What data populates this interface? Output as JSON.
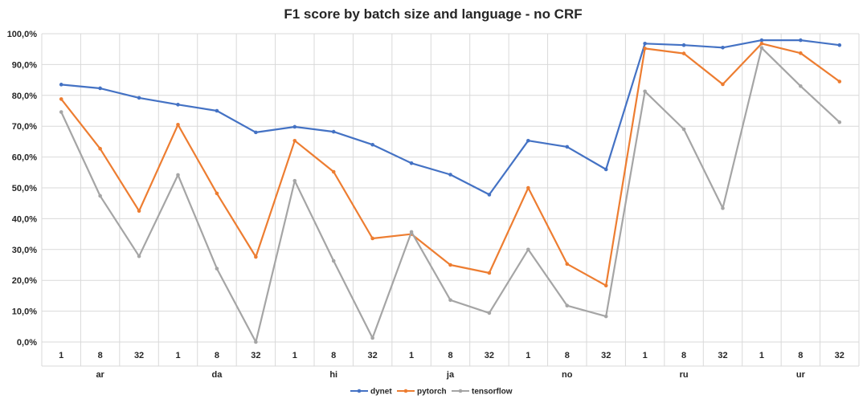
{
  "chart_data": {
    "type": "line",
    "title": "F1 score by batch size and language - no CRF",
    "xlabel": "",
    "ylabel": "",
    "ylim": [
      0,
      100
    ],
    "yticks": [
      "0,0%",
      "10,0%",
      "20,0%",
      "30,0%",
      "40,0%",
      "50,0%",
      "60,0%",
      "70,0%",
      "80,0%",
      "90,0%",
      "100,0%"
    ],
    "grid": true,
    "legend_position": "bottom",
    "groups": [
      "ar",
      "da",
      "hi",
      "ja",
      "no",
      "ru",
      "ur"
    ],
    "categories": [
      "1",
      "8",
      "32",
      "1",
      "8",
      "32",
      "1",
      "8",
      "32",
      "1",
      "8",
      "32",
      "1",
      "8",
      "32",
      "1",
      "8",
      "32",
      "1",
      "8",
      "32"
    ],
    "series": [
      {
        "name": "dynet",
        "color": "#4472C4",
        "values": [
          83.5,
          82.3,
          79.2,
          77.0,
          75.0,
          68.0,
          69.8,
          68.2,
          64.0,
          58.0,
          54.3,
          47.8,
          65.3,
          63.3,
          56.0,
          96.8,
          96.3,
          95.5,
          97.9,
          97.9,
          96.3
        ]
      },
      {
        "name": "pytorch",
        "color": "#ED7D31",
        "values": [
          78.8,
          62.7,
          42.5,
          70.5,
          48.2,
          27.6,
          65.3,
          55.2,
          33.6,
          35.0,
          25.0,
          22.4,
          50.0,
          25.3,
          18.3,
          95.2,
          93.6,
          83.6,
          96.8,
          93.7,
          84.5
        ]
      },
      {
        "name": "tensorflow",
        "color": "#A5A5A5",
        "values": [
          74.6,
          47.4,
          27.8,
          54.2,
          23.8,
          0.0,
          52.3,
          26.3,
          1.3,
          35.7,
          13.6,
          9.4,
          30.0,
          11.8,
          8.3,
          81.3,
          69.0,
          43.4,
          95.4,
          83.0,
          71.3
        ]
      }
    ]
  }
}
